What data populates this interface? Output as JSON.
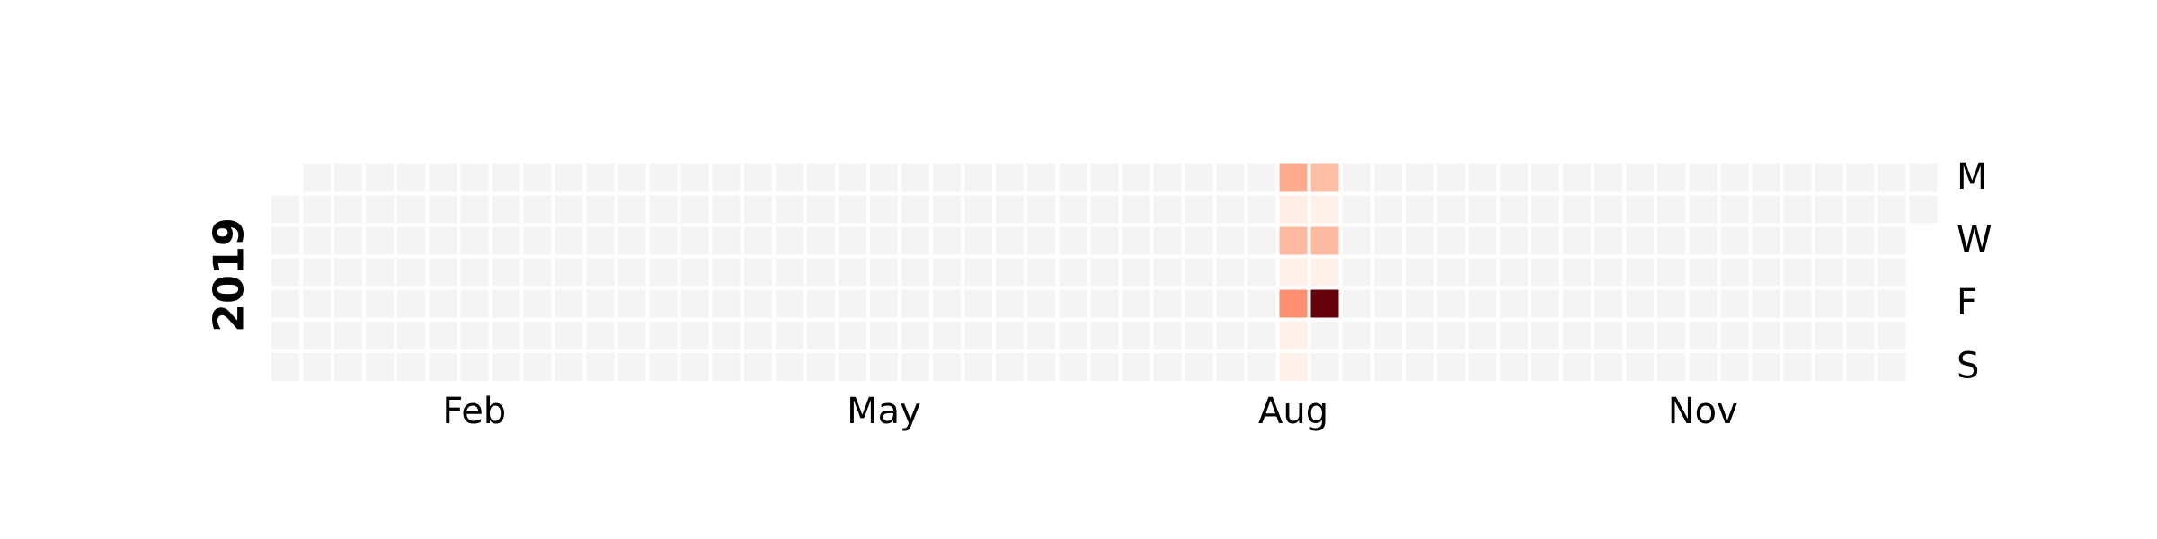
{
  "chart_data": {
    "type": "heatmap",
    "title": "",
    "xlabel": "",
    "ylabel": "2019",
    "year": 2019,
    "x_tick_labels": [
      "Feb",
      "May",
      "Aug",
      "Nov"
    ],
    "y_tick_labels": [
      "M",
      "W",
      "F",
      "S"
    ],
    "grid": false,
    "legend": "none",
    "colormap": "Reds",
    "vmin": 0,
    "vmax": 10,
    "empty_color": "#f4f4f4",
    "values": [
      {
        "date": "2019-08-12",
        "value": 3.0
      },
      {
        "date": "2019-08-13",
        "value": 0.4
      },
      {
        "date": "2019-08-14",
        "value": 2.5
      },
      {
        "date": "2019-08-15",
        "value": 0.3
      },
      {
        "date": "2019-08-16",
        "value": 3.8
      },
      {
        "date": "2019-08-17",
        "value": 0.3
      },
      {
        "date": "2019-08-18",
        "value": 0.3
      },
      {
        "date": "2019-08-19",
        "value": 2.4
      },
      {
        "date": "2019-08-20",
        "value": 0.3
      },
      {
        "date": "2019-08-21",
        "value": 2.5
      },
      {
        "date": "2019-08-22",
        "value": 0.3
      },
      {
        "date": "2019-08-23",
        "value": 10.0
      }
    ]
  }
}
